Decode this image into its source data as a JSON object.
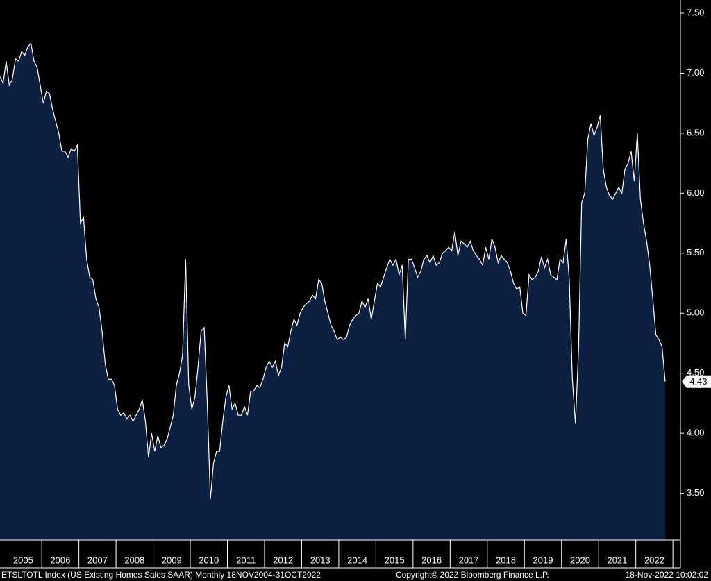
{
  "chart_data": {
    "type": "area",
    "series": [
      {
        "name": "ETSLTOTL Index",
        "color": "#0c2141",
        "line_color": "#ffffff",
        "values": [
          6.97,
          6.92,
          7.1,
          6.9,
          6.95,
          7.12,
          7.1,
          7.18,
          7.15,
          7.22,
          7.25,
          7.1,
          7.05,
          6.9,
          6.75,
          6.85,
          6.83,
          6.7,
          6.6,
          6.5,
          6.35,
          6.35,
          6.3,
          6.37,
          6.35,
          6.4,
          5.75,
          5.8,
          5.45,
          5.3,
          5.28,
          5.12,
          5.05,
          4.85,
          4.58,
          4.45,
          4.45,
          4.4,
          4.2,
          4.15,
          4.17,
          4.12,
          4.15,
          4.1,
          4.15,
          4.2,
          4.28,
          4.1,
          3.8,
          4.0,
          3.85,
          3.98,
          3.88,
          3.9,
          3.95,
          4.05,
          4.15,
          4.4,
          4.5,
          4.65,
          5.45,
          4.4,
          4.2,
          4.3,
          4.55,
          4.85,
          4.88,
          4.25,
          3.45,
          3.75,
          3.85,
          3.85,
          4.1,
          4.3,
          4.4,
          4.2,
          4.25,
          4.15,
          4.15,
          4.22,
          4.15,
          4.35,
          4.35,
          4.4,
          4.38,
          4.45,
          4.55,
          4.6,
          4.55,
          4.6,
          4.48,
          4.55,
          4.75,
          4.72,
          4.85,
          4.95,
          4.9,
          5.0,
          5.05,
          5.08,
          5.1,
          5.15,
          5.12,
          5.28,
          5.25,
          5.1,
          5.0,
          4.9,
          4.85,
          4.78,
          4.8,
          4.78,
          4.8,
          4.9,
          4.95,
          4.98,
          5.0,
          5.1,
          5.05,
          5.12,
          4.95,
          5.1,
          5.25,
          5.22,
          5.3,
          5.38,
          5.45,
          5.4,
          5.45,
          5.32,
          5.4,
          4.78,
          5.45,
          5.45,
          5.38,
          5.3,
          5.35,
          5.45,
          5.48,
          5.42,
          5.48,
          5.4,
          5.42,
          5.5,
          5.52,
          5.55,
          5.52,
          5.68,
          5.48,
          5.6,
          5.58,
          5.55,
          5.6,
          5.52,
          5.48,
          5.45,
          5.4,
          5.55,
          5.45,
          5.62,
          5.55,
          5.42,
          5.48,
          5.45,
          5.42,
          5.35,
          5.25,
          5.2,
          5.22,
          5.0,
          4.98,
          5.32,
          5.28,
          5.3,
          5.35,
          5.47,
          5.38,
          5.45,
          5.32,
          5.3,
          5.28,
          5.45,
          5.42,
          5.62,
          5.28,
          4.45,
          4.08,
          4.7,
          5.92,
          6.0,
          6.45,
          6.58,
          6.48,
          6.55,
          6.65,
          6.2,
          6.05,
          5.98,
          5.95,
          6.0,
          6.05,
          6.0,
          6.2,
          6.25,
          6.35,
          6.1,
          6.5,
          5.95,
          5.75,
          5.6,
          5.4,
          5.12,
          4.82,
          4.78,
          4.72,
          4.43
        ]
      }
    ],
    "xticks": [
      2005,
      2006,
      2007,
      2008,
      2009,
      2010,
      2011,
      2012,
      2013,
      2014,
      2015,
      2016,
      2017,
      2018,
      2019,
      2020,
      2021,
      2022
    ],
    "ylim": [
      3.11,
      7.61
    ],
    "yticks": [
      {
        "value": 3.5,
        "label": "3.50"
      },
      {
        "value": 4,
        "label": "4.00"
      },
      {
        "value": 4.5,
        "label": "4.50"
      },
      {
        "value": 5,
        "label": "5.00"
      },
      {
        "value": 5.5,
        "label": "5.50"
      },
      {
        "value": 6,
        "label": "6.00"
      },
      {
        "value": 6.5,
        "label": "6.50"
      },
      {
        "value": 7,
        "label": "7.00"
      },
      {
        "value": 7.5,
        "label": "7.50"
      }
    ],
    "source": "ETSLTOTL Index (US Existing Homes Sales SAAR)  Monthly 18NOV2004-31OCT2022",
    "copyright": "Copyright© 2022 Bloomberg Finance L.P.",
    "timestamp": "18-Nov-2022 10:02:02"
  }
}
